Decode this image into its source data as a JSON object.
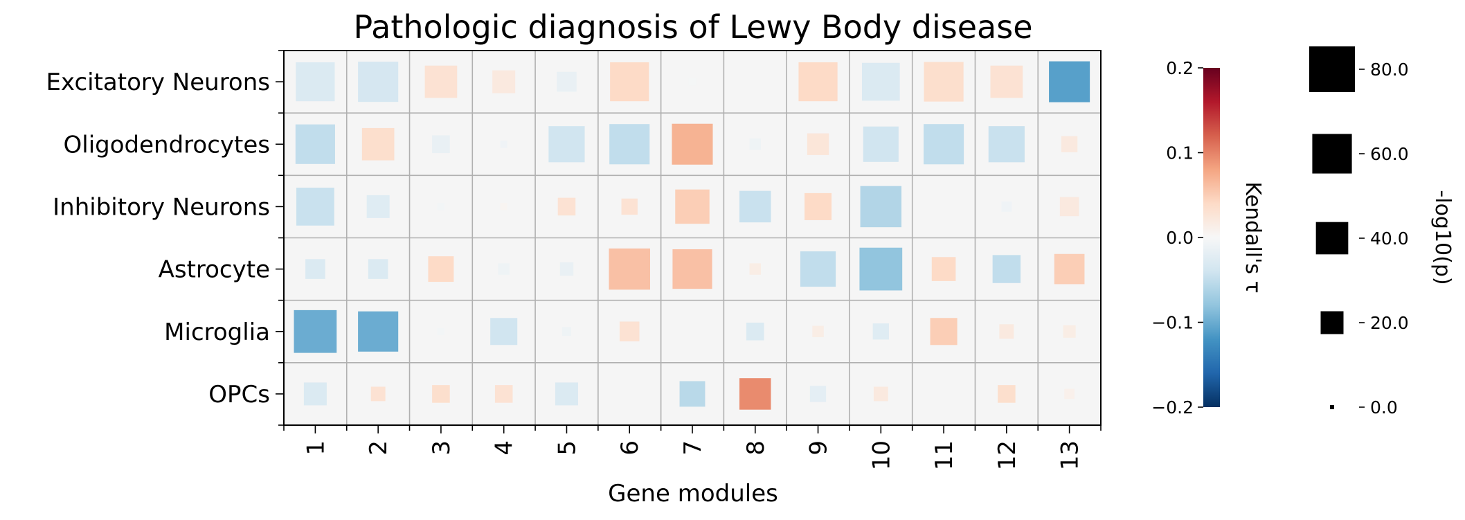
{
  "chart_data": {
    "type": "heatmap",
    "title": "Pathologic diagnosis of Lewy Body disease",
    "xlabel": "Gene modules",
    "ylabel": "",
    "x_categories": [
      "1",
      "2",
      "3",
      "4",
      "5",
      "6",
      "7",
      "8",
      "9",
      "10",
      "11",
      "12",
      "13"
    ],
    "y_categories": [
      "Excitatory Neurons",
      "Oligodendrocytes",
      "Inhibitory Neurons",
      "Astrocyte",
      "Microglia",
      "OPCs"
    ],
    "tau": [
      [
        -0.03,
        -0.035,
        0.03,
        0.02,
        -0.015,
        0.04,
        -0.003,
        0.0,
        0.04,
        -0.03,
        0.035,
        0.03,
        -0.11
      ],
      [
        -0.05,
        0.035,
        -0.015,
        -0.008,
        -0.04,
        -0.05,
        0.07,
        -0.01,
        0.025,
        -0.04,
        -0.05,
        -0.045,
        0.02
      ],
      [
        -0.045,
        -0.025,
        -0.005,
        0.005,
        0.03,
        0.03,
        0.05,
        -0.045,
        0.04,
        -0.06,
        0.0,
        -0.008,
        0.02
      ],
      [
        -0.03,
        -0.03,
        0.04,
        -0.01,
        -0.015,
        0.06,
        0.06,
        0.015,
        -0.05,
        -0.08,
        0.04,
        -0.05,
        0.05
      ],
      [
        -0.1,
        -0.1,
        -0.005,
        -0.04,
        -0.01,
        0.03,
        0.0,
        -0.03,
        0.015,
        -0.025,
        0.05,
        0.02,
        0.015
      ],
      [
        -0.03,
        0.03,
        0.035,
        0.03,
        -0.03,
        0.0,
        -0.055,
        0.095,
        -0.02,
        0.02,
        0.0,
        0.035,
        0.01
      ]
    ],
    "neglog10p": [
      [
        58,
        62,
        40,
        20,
        15,
        58,
        2,
        0,
        58,
        55,
        60,
        40,
        64
      ],
      [
        60,
        40,
        12,
        2,
        50,
        62,
        64,
        5,
        18,
        48,
        62,
        50,
        10
      ],
      [
        55,
        20,
        2,
        2,
        12,
        10,
        45,
        38,
        28,
        65,
        0,
        4,
        14
      ],
      [
        15,
        15,
        25,
        5,
        7,
        65,
        60,
        5,
        48,
        70,
        22,
        30,
        35
      ],
      [
        70,
        62,
        2,
        28,
        3,
        15,
        0,
        12,
        5,
        10,
        28,
        8,
        6
      ],
      [
        20,
        8,
        12,
        12,
        20,
        0,
        25,
        38,
        10,
        8,
        0,
        12,
        4
      ]
    ],
    "colorbar": {
      "label": "Kendall's τ",
      "range": [
        -0.2,
        0.2
      ],
      "ticks": [
        "0.2",
        "0.1",
        "0.0",
        "−0.1",
        "−0.2"
      ],
      "tick_values": [
        0.2,
        0.1,
        0.0,
        -0.1,
        -0.2
      ],
      "colormap": "RdBu_r"
    },
    "size_legend": {
      "label": "-log10(p)",
      "entries": [
        "80.0",
        "60.0",
        "40.0",
        "20.0",
        "0.0"
      ],
      "values": [
        80,
        60,
        40,
        20,
        0
      ],
      "max": 80
    },
    "grid": true,
    "background_color": "#f5f5f5",
    "grid_color": "#b0b0b0"
  }
}
